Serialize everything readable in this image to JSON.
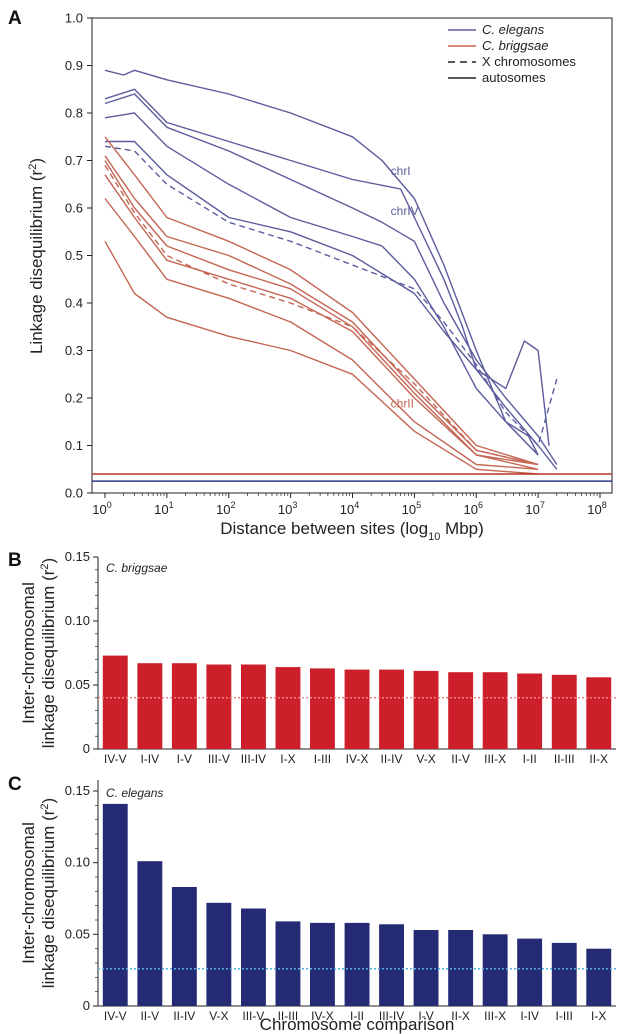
{
  "panels": {
    "a_letter": "A",
    "b_letter": "B",
    "c_letter": "C"
  },
  "chart_data": [
    {
      "type": "line",
      "panel": "A",
      "xlabel": "Distance between sites (log10 Mbp)",
      "xlabel_main": "Distance between sites (log",
      "xlabel_sub": "10",
      "xlabel_end": " Mbp)",
      "ylabel": "Linkage disequilibrium (r²)",
      "ylabel_main": "Linkage disequilibrium (r",
      "ylabel_sup": "2",
      "ylabel_end": ")",
      "x_scale": "log",
      "xlim": [
        1,
        100000000
      ],
      "ylim": [
        0,
        1.0
      ],
      "x_ticks": [
        "10^0",
        "10^1",
        "10^2",
        "10^3",
        "10^4",
        "10^5",
        "10^6",
        "10^7",
        "10^8"
      ],
      "x_tick_base": "10",
      "x_tick_exp": [
        "0",
        "1",
        "2",
        "3",
        "4",
        "5",
        "6",
        "7",
        "8"
      ],
      "y_ticks": [
        "0.0",
        "0.1",
        "0.2",
        "0.3",
        "0.4",
        "0.5",
        "0.6",
        "0.7",
        "0.8",
        "0.9",
        "1.0"
      ],
      "legend": {
        "placement": "top-right",
        "entries": [
          {
            "label": "C. elegans",
            "style": "blue-line",
            "italic": true
          },
          {
            "label": "C. briggsae",
            "style": "red-line",
            "italic": true
          },
          {
            "label": "X chromosomes",
            "style": "dashed"
          },
          {
            "label": "autosomes",
            "style": "solid"
          }
        ]
      },
      "annotations": [
        {
          "text": "chrI",
          "x": 60000,
          "y": 0.67,
          "species": "elegans"
        },
        {
          "text": "chrIV",
          "x": 60000,
          "y": 0.585,
          "species": "elegans"
        },
        {
          "text": "chrII",
          "x": 60000,
          "y": 0.18,
          "species": "briggsae"
        }
      ],
      "baselines": [
        {
          "species": "briggsae",
          "y": 0.04
        },
        {
          "species": "elegans",
          "y": 0.025
        }
      ],
      "colors": {
        "elegans": "#5b5c9e",
        "briggsae": "#c56553",
        "elegans_base": "#2e3a8c",
        "briggsae_base": "#b83324"
      },
      "series": [
        {
          "species": "elegans",
          "chrom": "1",
          "points": [
            [
              1,
              0.89
            ],
            [
              2,
              0.88
            ],
            [
              3,
              0.89
            ],
            [
              10,
              0.87
            ],
            [
              100,
              0.84
            ],
            [
              1000,
              0.8
            ],
            [
              10000,
              0.75
            ],
            [
              30000,
              0.7
            ],
            [
              100000,
              0.62
            ],
            [
              300000,
              0.48
            ],
            [
              1000000,
              0.3
            ],
            [
              3000000,
              0.15
            ],
            [
              10000000,
              0.08
            ]
          ]
        },
        {
          "species": "elegans",
          "chrom": "2",
          "points": [
            [
              1,
              0.83
            ],
            [
              3,
              0.85
            ],
            [
              10,
              0.78
            ],
            [
              100,
              0.74
            ],
            [
              1000,
              0.7
            ],
            [
              10000,
              0.66
            ],
            [
              60000,
              0.64
            ],
            [
              100000,
              0.58
            ],
            [
              300000,
              0.45
            ],
            [
              600000,
              0.35
            ],
            [
              1000000,
              0.26
            ],
            [
              3000000,
              0.18
            ],
            [
              10000000,
              0.1
            ],
            [
              20000000,
              0.05
            ]
          ]
        },
        {
          "species": "elegans",
          "chrom": "3",
          "points": [
            [
              1,
              0.82
            ],
            [
              3,
              0.84
            ],
            [
              10,
              0.77
            ],
            [
              100,
              0.72
            ],
            [
              1000,
              0.66
            ],
            [
              10000,
              0.6
            ],
            [
              30000,
              0.57
            ],
            [
              100000,
              0.53
            ],
            [
              300000,
              0.4
            ],
            [
              1000000,
              0.28
            ],
            [
              3000000,
              0.2
            ],
            [
              10000000,
              0.12
            ],
            [
              20000000,
              0.06
            ]
          ]
        },
        {
          "species": "elegans",
          "chrom": "4",
          "points": [
            [
              1,
              0.79
            ],
            [
              3,
              0.8
            ],
            [
              10,
              0.73
            ],
            [
              100,
              0.65
            ],
            [
              1000,
              0.58
            ],
            [
              10000,
              0.54
            ],
            [
              30000,
              0.52
            ],
            [
              100000,
              0.45
            ],
            [
              300000,
              0.35
            ],
            [
              1000000,
              0.22
            ],
            [
              3000000,
              0.15
            ],
            [
              7000000,
              0.12
            ],
            [
              10000000,
              0.08
            ]
          ]
        },
        {
          "species": "elegans",
          "chrom": "5",
          "points": [
            [
              1,
              0.74
            ],
            [
              3,
              0.74
            ],
            [
              10,
              0.67
            ],
            [
              100,
              0.58
            ],
            [
              1000,
              0.55
            ],
            [
              10000,
              0.5
            ],
            [
              100000,
              0.42
            ],
            [
              300000,
              0.34
            ],
            [
              1000000,
              0.26
            ],
            [
              3000000,
              0.22
            ],
            [
              6000000,
              0.32
            ],
            [
              10000000,
              0.3
            ],
            [
              15000000,
              0.1
            ]
          ]
        },
        {
          "species": "elegans",
          "chrom": "X",
          "points": [
            [
              1,
              0.73
            ],
            [
              3,
              0.72
            ],
            [
              10,
              0.65
            ],
            [
              100,
              0.57
            ],
            [
              1000,
              0.53
            ],
            [
              10000,
              0.48
            ],
            [
              100000,
              0.43
            ],
            [
              300000,
              0.36
            ],
            [
              1000000,
              0.27
            ],
            [
              3000000,
              0.17
            ],
            [
              10000000,
              0.1
            ],
            [
              20000000,
              0.24
            ]
          ]
        },
        {
          "species": "briggsae",
          "chrom": "1",
          "points": [
            [
              1,
              0.75
            ],
            [
              3,
              0.67
            ],
            [
              10,
              0.58
            ],
            [
              100,
              0.53
            ],
            [
              1000,
              0.47
            ],
            [
              10000,
              0.38
            ],
            [
              100000,
              0.24
            ],
            [
              1000000,
              0.1
            ],
            [
              10000000,
              0.06
            ]
          ]
        },
        {
          "species": "briggsae",
          "chrom": "2",
          "points": [
            [
              1,
              0.71
            ],
            [
              3,
              0.62
            ],
            [
              10,
              0.54
            ],
            [
              100,
              0.5
            ],
            [
              1000,
              0.44
            ],
            [
              10000,
              0.36
            ],
            [
              100000,
              0.22
            ],
            [
              1000000,
              0.09
            ],
            [
              10000000,
              0.06
            ]
          ]
        },
        {
          "species": "briggsae",
          "chrom": "3",
          "points": [
            [
              1,
              0.7
            ],
            [
              3,
              0.6
            ],
            [
              10,
              0.52
            ],
            [
              100,
              0.47
            ],
            [
              1000,
              0.43
            ],
            [
              10000,
              0.35
            ],
            [
              100000,
              0.21
            ],
            [
              1000000,
              0.08
            ],
            [
              10000000,
              0.06
            ]
          ]
        },
        {
          "species": "briggsae",
          "chrom": "4",
          "points": [
            [
              1,
              0.67
            ],
            [
              3,
              0.58
            ],
            [
              10,
              0.49
            ],
            [
              100,
              0.45
            ],
            [
              1000,
              0.41
            ],
            [
              10000,
              0.34
            ],
            [
              100000,
              0.2
            ],
            [
              1000000,
              0.08
            ],
            [
              10000000,
              0.05
            ]
          ]
        },
        {
          "species": "briggsae",
          "chrom": "X",
          "points": [
            [
              1,
              0.69
            ],
            [
              3,
              0.59
            ],
            [
              10,
              0.5
            ],
            [
              100,
              0.44
            ],
            [
              1000,
              0.4
            ],
            [
              10000,
              0.35
            ],
            [
              100000,
              0.23
            ],
            [
              1000000,
              0.09
            ],
            [
              10000000,
              0.06
            ]
          ]
        },
        {
          "species": "briggsae",
          "chrom": "6",
          "points": [
            [
              1,
              0.62
            ],
            [
              3,
              0.54
            ],
            [
              10,
              0.45
            ],
            [
              100,
              0.41
            ],
            [
              1000,
              0.36
            ],
            [
              10000,
              0.28
            ],
            [
              100000,
              0.15
            ],
            [
              1000000,
              0.06
            ],
            [
              10000000,
              0.05
            ]
          ]
        },
        {
          "species": "briggsae",
          "chrom": "7",
          "points": [
            [
              1,
              0.53
            ],
            [
              3,
              0.42
            ],
            [
              10,
              0.37
            ],
            [
              100,
              0.33
            ],
            [
              1000,
              0.3
            ],
            [
              10000,
              0.25
            ],
            [
              100000,
              0.13
            ],
            [
              1000000,
              0.05
            ],
            [
              10000000,
              0.04
            ]
          ]
        }
      ]
    },
    {
      "type": "bar",
      "panel": "B",
      "ylabel": "Inter-chromosomal linkage disequilibrium (r²)",
      "ylabel_line1": "Inter-chromosomal",
      "ylabel_line2_main": "linkage disequilibrium (r",
      "ylabel_sup": "2",
      "ylabel_end": ")",
      "annotation": "C. briggsae",
      "ylim": [
        0,
        0.15
      ],
      "y_ticks": [
        "0",
        "0.05",
        "0.10",
        "0.15"
      ],
      "reference_line": 0.04,
      "color": "#cc1f2a",
      "reference_color": "#f07f8a",
      "categories": [
        "IV-V",
        "I-IV",
        "I-V",
        "III-V",
        "III-IV",
        "I-X",
        "I-III",
        "IV-X",
        "II-IV",
        "V-X",
        "II-V",
        "III-X",
        "I-II",
        "II-III",
        "II-X"
      ],
      "values": [
        0.073,
        0.067,
        0.067,
        0.066,
        0.066,
        0.064,
        0.063,
        0.062,
        0.062,
        0.061,
        0.06,
        0.06,
        0.059,
        0.058,
        0.056
      ]
    },
    {
      "type": "bar",
      "panel": "C",
      "ylabel": "Inter-chromosomal linkage disequilibrium (r²)",
      "ylabel_line1": "Inter-chromosomal",
      "ylabel_line2_main": "linkage disequilibrium (r",
      "ylabel_sup": "2",
      "ylabel_end": ")",
      "xlabel": "Chromosome comparison",
      "annotation": "C. elegans",
      "ylim": [
        0,
        0.15
      ],
      "y_ticks": [
        "0",
        "0.05",
        "0.10",
        "0.15"
      ],
      "reference_line": 0.026,
      "color": "#252a74",
      "reference_color": "#4fb3e6",
      "categories": [
        "IV-V",
        "II-V",
        "II-IV",
        "V-X",
        "III-V",
        "II-III",
        "IV-X",
        "I-II",
        "III-IV",
        "I-V",
        "II-X",
        "III-X",
        "I-IV",
        "I-III",
        "I-X"
      ],
      "values": [
        0.141,
        0.101,
        0.083,
        0.072,
        0.068,
        0.059,
        0.058,
        0.058,
        0.057,
        0.053,
        0.053,
        0.05,
        0.047,
        0.044,
        0.04
      ]
    }
  ]
}
